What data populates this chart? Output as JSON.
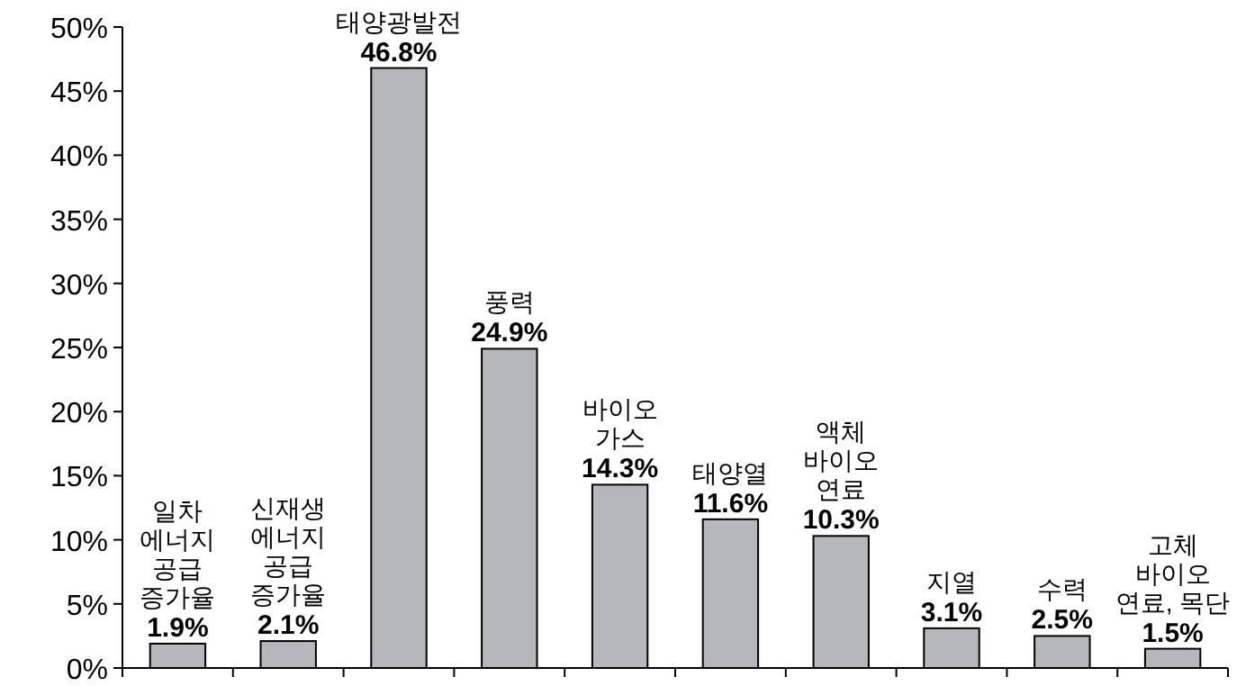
{
  "chart_data": {
    "type": "bar",
    "categories": [
      "일차\n에너지\n공급\n증가율",
      "신재생\n에너지\n공급\n증가율",
      "태양광발전",
      "풍력",
      "바이오\n가스",
      "태양열",
      "액체\n바이오\n연료",
      "지열",
      "수력",
      "고체\n바이오\n연료, 목단"
    ],
    "values": [
      1.9,
      2.1,
      46.8,
      24.9,
      14.3,
      11.6,
      10.3,
      3.1,
      2.5,
      1.5
    ],
    "value_labels": [
      "1.9%",
      "2.1%",
      "46.8%",
      "24.9%",
      "14.3%",
      "11.6%",
      "10.3%",
      "3.1%",
      "2.5%",
      "1.5%"
    ],
    "color": "#b5b7bc",
    "ylim": [
      0,
      50
    ],
    "yticks": [
      {
        "value": 0,
        "label": "0%"
      },
      {
        "value": 5,
        "label": "5%"
      },
      {
        "value": 10,
        "label": "10%"
      },
      {
        "value": 15,
        "label": "15%"
      },
      {
        "value": 20,
        "label": "20%"
      },
      {
        "value": 25,
        "label": "25%"
      },
      {
        "value": 30,
        "label": "30%"
      },
      {
        "value": 35,
        "label": "35%"
      },
      {
        "value": 40,
        "label": "40%"
      },
      {
        "value": 45,
        "label": "45%"
      },
      {
        "value": 50,
        "label": "50%"
      }
    ],
    "grid": false
  }
}
